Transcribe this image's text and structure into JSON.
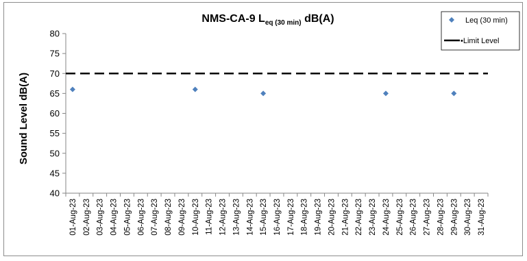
{
  "chart_data": {
    "type": "scatter",
    "title": {
      "main": "NMS-CA-9 L",
      "subscript": "eq (30 min)",
      "suffix": " dB(A)"
    },
    "ylabel": "Sound Level dB(A)",
    "xlabel": "",
    "ylim": [
      40,
      80
    ],
    "yticks": [
      40,
      45,
      50,
      55,
      60,
      65,
      70,
      75,
      80
    ],
    "categories": [
      "01-Aug-23",
      "02-Aug-23",
      "03-Aug-23",
      "04-Aug-23",
      "05-Aug-23",
      "06-Aug-23",
      "07-Aug-23",
      "08-Aug-23",
      "09-Aug-23",
      "10-Aug-23",
      "11-Aug-23",
      "12-Aug-23",
      "13-Aug-23",
      "14-Aug-23",
      "15-Aug-23",
      "16-Aug-23",
      "17-Aug-23",
      "18-Aug-23",
      "19-Aug-23",
      "20-Aug-23",
      "21-Aug-23",
      "22-Aug-23",
      "23-Aug-23",
      "24-Aug-23",
      "25-Aug-23",
      "26-Aug-23",
      "27-Aug-23",
      "28-Aug-23",
      "29-Aug-23",
      "30-Aug-23",
      "31-Aug-23"
    ],
    "series": [
      {
        "name": "Leq (30 min)",
        "color": "#4f81bd",
        "marker": "diamond",
        "points": [
          {
            "x": "01-Aug-23",
            "y": 66
          },
          {
            "x": "10-Aug-23",
            "y": 66
          },
          {
            "x": "15-Aug-23",
            "y": 65
          },
          {
            "x": "24-Aug-23",
            "y": 65
          },
          {
            "x": "29-Aug-23",
            "y": 65
          }
        ]
      }
    ],
    "limit": {
      "name": "Limit Level",
      "value": 70,
      "color": "#000000",
      "style": "dashed"
    },
    "legend_position": "top-right",
    "grid": false
  }
}
